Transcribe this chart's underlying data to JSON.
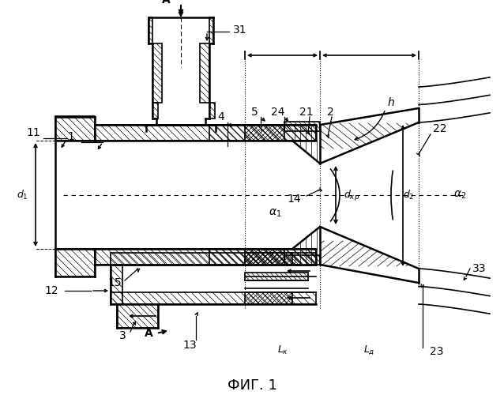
{
  "title": "ФИГ. 1",
  "bg_color": "#ffffff",
  "line_color": "#000000"
}
